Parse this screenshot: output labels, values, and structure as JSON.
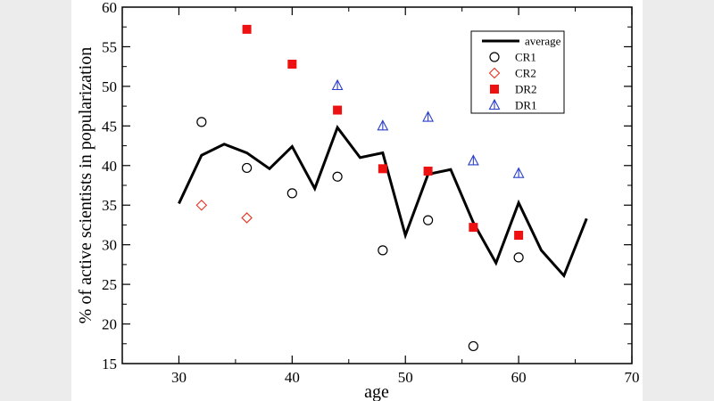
{
  "chart_data": {
    "type": "line",
    "xlabel": "age",
    "ylabel": "% of active scientists in popularization",
    "xlim": [
      25,
      70
    ],
    "ylim": [
      15,
      60
    ],
    "xticks": [
      30,
      40,
      50,
      60,
      70
    ],
    "yticks": [
      15,
      20,
      25,
      30,
      35,
      40,
      45,
      50,
      55,
      60
    ],
    "grid": false,
    "legend_position": "top-right",
    "series": [
      {
        "name": "average",
        "kind": "line",
        "color": "#000000",
        "points": [
          [
            30,
            35.2
          ],
          [
            32,
            41.3
          ],
          [
            34,
            42.7
          ],
          [
            36,
            41.6
          ],
          [
            38,
            39.6
          ],
          [
            40,
            42.4
          ],
          [
            42,
            37.1
          ],
          [
            44,
            44.8
          ],
          [
            46,
            41.0
          ],
          [
            48,
            41.6
          ],
          [
            50,
            31.2
          ],
          [
            52,
            38.9
          ],
          [
            54,
            39.5
          ],
          [
            56,
            32.8
          ],
          [
            58,
            27.7
          ],
          [
            60,
            35.3
          ],
          [
            62,
            29.3
          ],
          [
            64,
            26.1
          ],
          [
            66,
            33.3
          ]
        ]
      },
      {
        "name": "CR1",
        "kind": "scatter",
        "marker": "circle",
        "color": "#000000",
        "points": [
          [
            32,
            45.5
          ],
          [
            36,
            39.7
          ],
          [
            40,
            36.5
          ],
          [
            44,
            38.6
          ],
          [
            48,
            29.3
          ],
          [
            52,
            33.1
          ],
          [
            56,
            17.2
          ],
          [
            60,
            28.4
          ]
        ]
      },
      {
        "name": "CR2",
        "kind": "scatter",
        "marker": "diamond",
        "color": "#e8321e",
        "points": [
          [
            32,
            35.0
          ],
          [
            36,
            33.4
          ]
        ]
      },
      {
        "name": "DR2",
        "kind": "scatter",
        "marker": "square",
        "color": "#ee1111",
        "points": [
          [
            36,
            57.2
          ],
          [
            40,
            52.8
          ],
          [
            44,
            47.0
          ],
          [
            48,
            39.6
          ],
          [
            52,
            39.3
          ],
          [
            56,
            32.2
          ],
          [
            60,
            31.2
          ]
        ]
      },
      {
        "name": "DR1",
        "kind": "scatter",
        "marker": "triangle",
        "color": "#2a3fc9",
        "points": [
          [
            44,
            50.1
          ],
          [
            48,
            45.0
          ],
          [
            52,
            46.1
          ],
          [
            56,
            40.6
          ],
          [
            60,
            39.0
          ]
        ]
      }
    ]
  }
}
